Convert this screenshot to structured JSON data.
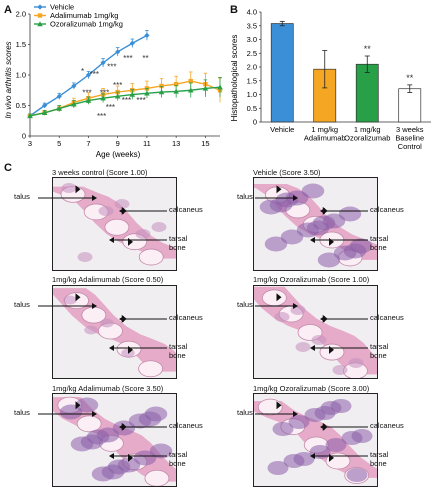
{
  "panels": {
    "a": "A",
    "b": "B",
    "c": "C"
  },
  "colors": {
    "vehicle": "#3a8fd6",
    "adalimumab": "#f5a623",
    "ozoralizumab": "#27a048",
    "baseline": "#ffffff"
  },
  "chart_data": [
    {
      "type": "line",
      "xlabel": "Age (weeks)",
      "ylabel": "In vivo arthritis scores",
      "xlim": [
        3,
        16
      ],
      "ylim": [
        0,
        2.0
      ],
      "xticks": [
        "3",
        "5",
        "7",
        "9",
        "11",
        "13",
        "15"
      ],
      "yticks": [
        "0",
        "0.5",
        "1.0",
        "1.5",
        "2.0"
      ],
      "legend": "top-left",
      "series": [
        {
          "name": "Vehicle",
          "color": "#3a8fd6",
          "marker": "diamond",
          "x": [
            3,
            4,
            5,
            6,
            7,
            8,
            9,
            10,
            11
          ],
          "y": [
            0.33,
            0.5,
            0.65,
            0.82,
            1.0,
            1.2,
            1.38,
            1.52,
            1.65
          ],
          "err": [
            0.03,
            0.04,
            0.05,
            0.05,
            0.06,
            0.07,
            0.07,
            0.07,
            0.08
          ]
        },
        {
          "name": "Adalimumab  1mg/kg",
          "color": "#f5a623",
          "marker": "square",
          "x": [
            3,
            4,
            5,
            6,
            7,
            8,
            9,
            10,
            11,
            12,
            13,
            14,
            15,
            16
          ],
          "y": [
            0.33,
            0.38,
            0.45,
            0.55,
            0.62,
            0.68,
            0.72,
            0.75,
            0.78,
            0.82,
            0.85,
            0.9,
            0.85,
            0.75
          ],
          "err": [
            0.03,
            0.04,
            0.05,
            0.07,
            0.09,
            0.1,
            0.1,
            0.11,
            0.12,
            0.12,
            0.13,
            0.15,
            0.18,
            0.2
          ]
        },
        {
          "name": "Ozoralizumab 1mg/kg",
          "color": "#27a048",
          "marker": "triangle",
          "x": [
            3,
            4,
            5,
            6,
            7,
            8,
            9,
            10,
            11,
            12,
            13,
            14,
            15,
            16
          ],
          "y": [
            0.33,
            0.38,
            0.45,
            0.52,
            0.58,
            0.62,
            0.65,
            0.68,
            0.7,
            0.72,
            0.73,
            0.75,
            0.78,
            0.8
          ],
          "err": [
            0.03,
            0.04,
            0.05,
            0.06,
            0.06,
            0.07,
            0.07,
            0.08,
            0.08,
            0.09,
            0.1,
            0.12,
            0.14,
            0.16
          ]
        }
      ],
      "annotations": [
        {
          "text": "*",
          "x": 6.6,
          "y": 1.02
        },
        {
          "text": "***",
          "x": 7.4,
          "y": 0.97
        },
        {
          "text": "***",
          "x": 8.6,
          "y": 1.09
        },
        {
          "text": "***",
          "x": 9.7,
          "y": 1.23
        },
        {
          "text": "**",
          "x": 10.9,
          "y": 1.23
        },
        {
          "text": "***",
          "x": 6.9,
          "y": 0.66
        },
        {
          "text": "***",
          "x": 8.1,
          "y": 0.66
        },
        {
          "text": "***",
          "x": 9.0,
          "y": 0.79
        },
        {
          "text": "***",
          "x": 9.6,
          "y": 0.54
        },
        {
          "text": "***",
          "x": 10.6,
          "y": 0.54
        },
        {
          "text": "***",
          "x": 8.5,
          "y": 0.43
        },
        {
          "text": "***",
          "x": 7.9,
          "y": 0.28
        }
      ]
    },
    {
      "type": "bar",
      "ylabel": "Histopathological scores",
      "ylim": [
        0,
        4.0
      ],
      "yticks": [
        "0",
        "0.5",
        "1.0",
        "1.5",
        "2.0",
        "2.5",
        "3.0",
        "3.5",
        "4.0"
      ],
      "categories": [
        "Vehicle",
        "1 mg/kg Adalimumab",
        "1 mg/kg Ozoralizumab",
        "3 weeks Baseline Control"
      ],
      "category_lines": [
        [
          "Vehicle"
        ],
        [
          "1 mg/kg",
          "Adalimumab"
        ],
        [
          "1 mg/kg",
          "Ozoralizumab"
        ],
        [
          "3 weeks",
          "Baseline",
          "Control"
        ]
      ],
      "values": [
        3.58,
        1.92,
        2.1,
        1.21
      ],
      "err": [
        0.08,
        0.68,
        0.3,
        0.14
      ],
      "colors": [
        "#3a8fd6",
        "#f5a623",
        "#27a048",
        "#ffffff"
      ],
      "significance": [
        "",
        "",
        "**",
        "**"
      ]
    }
  ],
  "histology": [
    {
      "title": "3 weeks control (Score 1.00)",
      "severity": 1.0,
      "labels": {
        "talus": "talus",
        "calcaneus": "calcaneus",
        "tarsal": [
          "tarsal",
          "bone"
        ]
      }
    },
    {
      "title": "Vehicle (Score 3.50)",
      "severity": 3.5,
      "labels": {
        "talus": "talus",
        "calcaneus": "calcaneus",
        "tarsal": [
          "tarsal",
          "bone"
        ]
      }
    },
    {
      "title": "1mg/kg Adalimumab (Score 0.50)",
      "severity": 0.5,
      "labels": {
        "talus": "talus",
        "calcaneus": "calcaneus",
        "tarsal": [
          "tarsal",
          "bone"
        ]
      }
    },
    {
      "title": "1mg/kg Ozoralizumab (Score 1.00)",
      "severity": 1.0,
      "labels": {
        "talus": "talus",
        "calcaneus": "calcaneus",
        "tarsal": [
          "tarsal",
          "bone"
        ]
      }
    },
    {
      "title": "1mg/kg Adalimumab (Score 3.50)",
      "severity": 3.5,
      "labels": {
        "talus": "talus",
        "calcaneus": "calcaneus",
        "tarsal": [
          "tarsal",
          "bone"
        ]
      }
    },
    {
      "title": "1mg/kg Ozoralizumab (Score 3.00)",
      "severity": 3.0,
      "labels": {
        "talus": "talus",
        "calcaneus": "calcaneus",
        "tarsal": [
          "tarsal",
          "bone"
        ]
      }
    }
  ]
}
